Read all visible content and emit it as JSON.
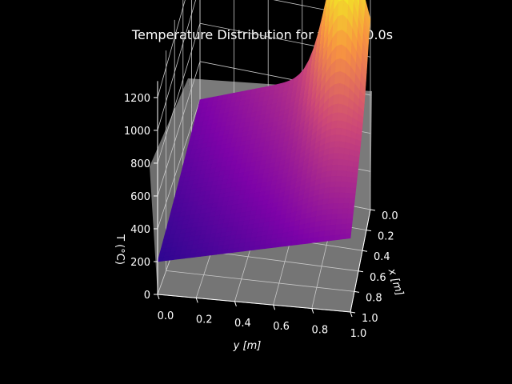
{
  "chart_data": {
    "type": "surface3d",
    "title": "Temperature Distribution for t=25000.0s",
    "xlabel": "y [m]",
    "ylabel": "x [m]",
    "zlabel": "T (°C)",
    "y_ticks": [
      "0.0",
      "0.2",
      "0.4",
      "0.6",
      "0.8",
      "1.0"
    ],
    "x_ticks": [
      "0.0",
      "0.2",
      "0.4",
      "0.6",
      "0.8",
      "1.0"
    ],
    "z_ticks": [
      "0",
      "200",
      "400",
      "600",
      "800",
      "1000",
      "1200"
    ],
    "ylim": [
      0,
      1
    ],
    "xlim": [
      0,
      1
    ],
    "zlim": [
      0,
      1300
    ],
    "colormap": "plasma",
    "background_color": "#000000",
    "pane_color": "#7a7a7a",
    "grid": true,
    "peak": {
      "y": 0.85,
      "x": 0.0,
      "temperature": 1250
    },
    "edge_temperatures": {
      "y0_x0": 400,
      "y0_x1": 200,
      "y1_x0": 750,
      "y1_x1": 450
    }
  }
}
